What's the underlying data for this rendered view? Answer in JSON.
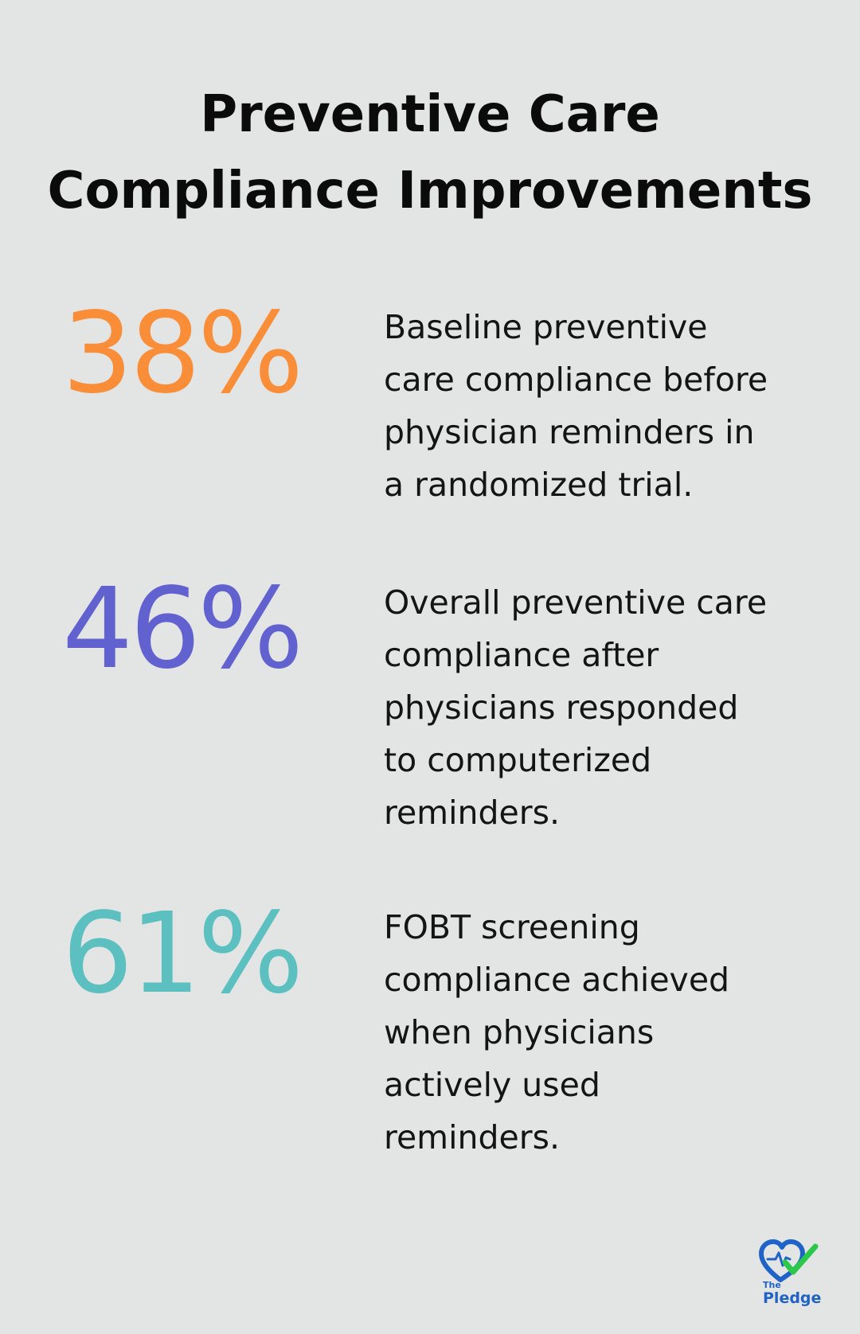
{
  "title": {
    "line1": "Preventive Care",
    "line2": "Compliance Improvements"
  },
  "stats": [
    {
      "value": "38%",
      "color": "#f98d38",
      "lines": [
        "Baseline preventive",
        "care compliance before",
        "physician reminders in",
        "a randomized trial."
      ]
    },
    {
      "value": "46%",
      "color": "#6161d0",
      "lines": [
        "Overall preventive care",
        "compliance after",
        "physicians responded",
        "to computerized",
        "reminders."
      ]
    },
    {
      "value": "61%",
      "color": "#5cc0c0",
      "lines": [
        "FOBT screening",
        "compliance achieved",
        "when physicians",
        "actively used",
        "reminders."
      ]
    }
  ],
  "logo": {
    "the": "The",
    "name": "Pledge",
    "colors": {
      "heart": "#1f63c9",
      "check": "#2bc84a"
    },
    "icon": "heart-check-icon"
  }
}
